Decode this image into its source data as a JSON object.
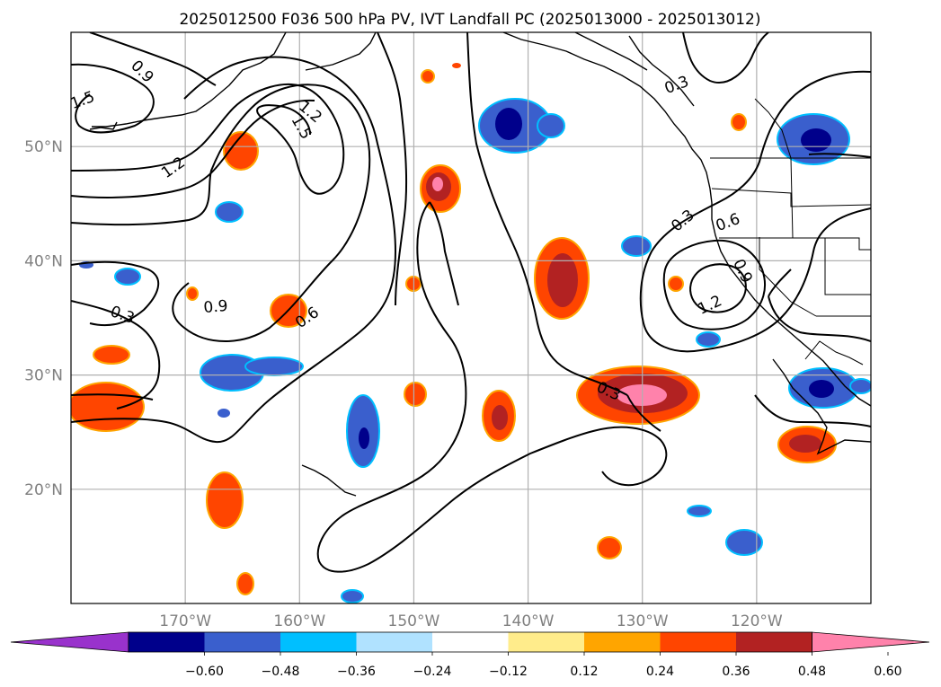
{
  "title": "2025012500 F036 500 hPa PV, IVT Landfall PC (2025013000 - 2025013012)",
  "map": {
    "lon_range": [
      -180,
      -110
    ],
    "lat_range": [
      10,
      60
    ],
    "lat_ticks": [
      {
        "value": 50,
        "label": "50°N"
      },
      {
        "value": 40,
        "label": "40°N"
      },
      {
        "value": 30,
        "label": "30°N"
      },
      {
        "value": 20,
        "label": "20°N"
      }
    ],
    "lon_ticks": [
      {
        "value": -170,
        "label": "170°W"
      },
      {
        "value": -160,
        "label": "160°W"
      },
      {
        "value": -150,
        "label": "150°W"
      },
      {
        "value": -140,
        "label": "140°W"
      },
      {
        "value": -130,
        "label": "130°W"
      },
      {
        "value": -120,
        "label": "120°W"
      }
    ],
    "gridlines": true,
    "contour_labels": [
      "0.9",
      "1.5",
      "1.2",
      "1.5",
      "1.2",
      "0.3",
      "0.9",
      "0.6",
      "0.3",
      "0.3",
      "0.6",
      "0.9",
      "1.2",
      "0.3"
    ]
  },
  "colorbar": {
    "colors": [
      "#9932cc",
      "#00008b",
      "#3a5fcd",
      "#00bfff",
      "#b0e2ff",
      "#ffffff",
      "#ffec8b",
      "#ffa500",
      "#ff4500",
      "#b22222",
      "#ff82ab"
    ],
    "tick_labels": [
      "−0.60",
      "−0.48",
      "−0.36",
      "−0.24",
      "−0.12",
      "0.12",
      "0.24",
      "0.36",
      "0.48",
      "0.60"
    ],
    "extend": "both"
  }
}
